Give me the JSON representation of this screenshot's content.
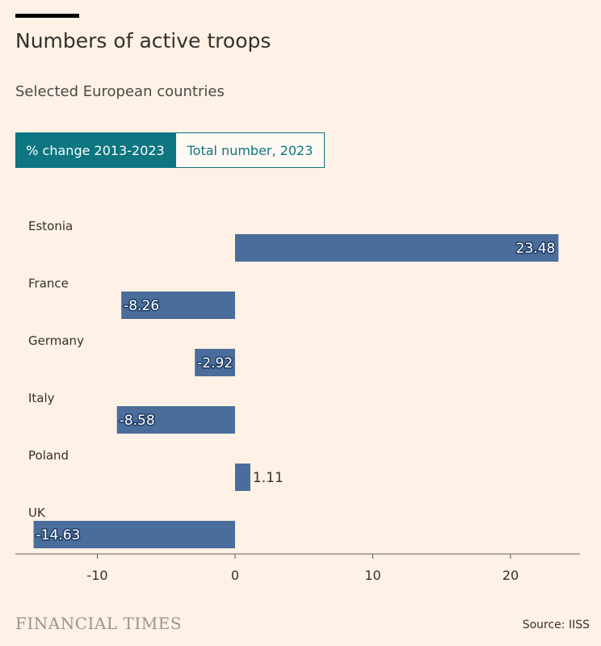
{
  "header": {
    "title": "Numbers of active troops",
    "subtitle": "Selected European countries"
  },
  "tabs": [
    {
      "label": "% change 2013-2023",
      "active": true
    },
    {
      "label": "Total number, 2023",
      "active": false
    }
  ],
  "chart_data": {
    "type": "bar",
    "orientation": "horizontal",
    "categories": [
      "Estonia",
      "France",
      "Germany",
      "Italy",
      "Poland",
      "UK"
    ],
    "values": [
      23.48,
      -8.26,
      -2.92,
      -8.58,
      1.11,
      -14.63
    ],
    "value_labels": [
      "23.48",
      "-8.26",
      "-2.92",
      "-8.58",
      "1.11",
      "-14.63"
    ],
    "xlim": [
      -15,
      25
    ],
    "xticks": [
      -10,
      0,
      10,
      20
    ],
    "xtick_labels": [
      "-10",
      "0",
      "10",
      "20"
    ],
    "grid": false,
    "bar_color": "#4a6d9b"
  },
  "footer": {
    "brand": "FINANCIAL TIMES",
    "source": "Source: IISS"
  },
  "colors": {
    "background": "#fff1e5",
    "accent": "#0d7680",
    "bar": "#4a6d9b",
    "text": "#33302e"
  }
}
